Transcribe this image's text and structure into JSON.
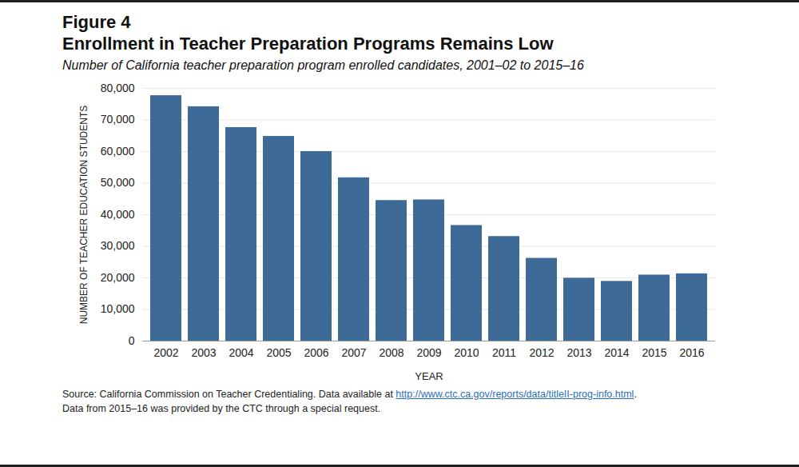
{
  "chart_data": {
    "type": "bar",
    "figure_label": "Figure 4",
    "title": "Enrollment in Teacher Preparation Programs Remains Low",
    "subtitle": "Number of California teacher preparation program enrolled candidates, 2001–02 to 2015–16",
    "xlabel": "YEAR",
    "ylabel": "NUMBER OF TEACHER EDUCATION STUDENTS",
    "categories": [
      "2002",
      "2003",
      "2004",
      "2005",
      "2006",
      "2007",
      "2008",
      "2009",
      "2010",
      "2011",
      "2012",
      "2013",
      "2014",
      "2015",
      "2016"
    ],
    "values": [
      77700,
      74200,
      67600,
      64800,
      60000,
      51700,
      44500,
      44700,
      36600,
      33100,
      26200,
      19900,
      18900,
      20900,
      21300
    ],
    "color": "#3d6a96",
    "ylim": [
      0,
      80000
    ],
    "yticks": [
      0,
      {
        "value": 10000,
        "label": "10,000"
      },
      {
        "value": 20000,
        "label": "20,000"
      },
      {
        "value": 30000,
        "label": "30,000"
      },
      {
        "value": 40000,
        "label": "40,000"
      },
      {
        "value": 50000,
        "label": "50,000"
      },
      {
        "value": 60000,
        "label": "60,000"
      },
      {
        "value": 70000,
        "label": "70,000"
      },
      {
        "value": 80000,
        "label": "80,000"
      }
    ],
    "grid": true,
    "source": {
      "text": "Source: California Commission on Teacher Credentialing. Data available at",
      "url": "http://www.ctc.ca.gov/reports/data/titleII-prog-info.html",
      "after": "."
    },
    "note": "Data from 2015–16 was provided by the CTC through a special request."
  }
}
